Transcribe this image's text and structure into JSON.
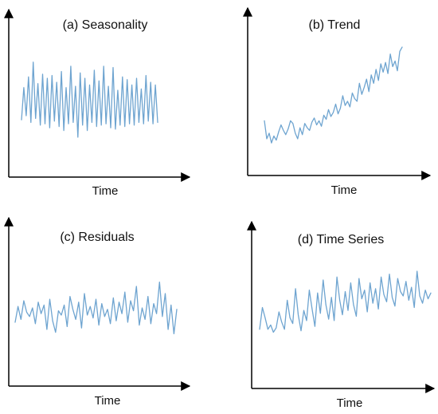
{
  "colors": {
    "line": "#6ea4d0",
    "axis": "#000000"
  },
  "chart_data": [
    {
      "type": "line",
      "title": "(a) Seasonality",
      "xlabel": "Time",
      "ylabel": "",
      "ylim": [
        0,
        10
      ],
      "series": [
        {
          "values": [
            3.8,
            6.2,
            4.1,
            7.0,
            3.6,
            8.1,
            3.9,
            6.5,
            3.4,
            7.2,
            3.5,
            6.9,
            3.2,
            7.1,
            3.7,
            6.6,
            3.3,
            7.4,
            3.0,
            6.2,
            3.5,
            7.8,
            3.6,
            6.3,
            2.5,
            7.3,
            3.4,
            6.9,
            3.0,
            6.4,
            3.6,
            7.5,
            3.3,
            6.7,
            3.4,
            7.8,
            3.5,
            6.3,
            3.2,
            7.7,
            3.1,
            6.0,
            3.4,
            7.0,
            3.3,
            6.8,
            3.5,
            6.4,
            3.4,
            6.9,
            3.6,
            6.1,
            3.5,
            7.1,
            3.7,
            6.6,
            3.5,
            6.4,
            3.6
          ]
        }
      ]
    },
    {
      "type": "line",
      "title": "(b) Trend",
      "xlabel": "Time",
      "ylabel": "",
      "ylim": [
        0,
        10
      ],
      "series": [
        {
          "values": [
            3.6,
            2.3,
            2.7,
            2.0,
            2.5,
            2.2,
            2.8,
            3.3,
            2.9,
            2.6,
            3.0,
            3.6,
            3.4,
            2.7,
            2.3,
            3.1,
            2.6,
            3.4,
            3.1,
            2.9,
            3.5,
            3.8,
            3.3,
            3.6,
            3.2,
            4.0,
            3.7,
            4.4,
            3.9,
            4.2,
            4.8,
            4.1,
            4.5,
            5.4,
            4.7,
            5.0,
            4.6,
            5.6,
            5.2,
            5.0,
            6.3,
            5.5,
            6.0,
            6.6,
            5.7,
            6.9,
            6.3,
            7.3,
            6.5,
            7.7,
            7.1,
            7.8,
            7.0,
            8.4,
            7.5,
            7.9,
            7.2,
            8.6,
            8.9
          ]
        }
      ]
    },
    {
      "type": "line",
      "title": "(c) Residuals",
      "xlabel": "Time",
      "ylabel": "",
      "ylim": [
        0,
        10
      ],
      "series": [
        {
          "values": [
            4.0,
            5.1,
            4.2,
            5.5,
            4.7,
            4.4,
            5.0,
            3.9,
            5.4,
            4.6,
            5.2,
            3.5,
            5.6,
            4.1,
            3.3,
            4.8,
            4.5,
            5.2,
            3.7,
            5.8,
            4.9,
            4.2,
            5.4,
            3.6,
            6.0,
            4.5,
            5.1,
            4.3,
            5.6,
            3.8,
            5.3,
            4.4,
            4.9,
            3.9,
            5.7,
            4.1,
            5.4,
            4.6,
            6.1,
            4.0,
            5.5,
            4.8,
            6.5,
            3.8,
            5.0,
            4.2,
            5.8,
            3.9,
            5.3,
            4.6,
            6.8,
            4.4,
            6.0,
            3.5,
            5.2,
            3.2,
            4.9
          ]
        }
      ]
    },
    {
      "type": "line",
      "title": "(d) Time Series",
      "xlabel": "Time",
      "ylabel": "",
      "ylim": [
        0,
        10
      ],
      "series": [
        {
          "values": [
            3.8,
            5.3,
            4.6,
            3.8,
            4.1,
            3.6,
            3.9,
            5.0,
            4.3,
            3.8,
            5.8,
            4.6,
            4.2,
            6.6,
            4.8,
            3.7,
            5.1,
            4.4,
            6.5,
            5.2,
            4.0,
            6.3,
            4.9,
            7.2,
            5.5,
            4.5,
            6.0,
            4.4,
            7.4,
            5.8,
            4.8,
            6.4,
            5.1,
            7.0,
            5.5,
            4.7,
            7.3,
            5.9,
            6.5,
            5.0,
            7.0,
            5.6,
            6.6,
            5.2,
            7.4,
            6.2,
            5.7,
            7.6,
            6.0,
            5.4,
            7.3,
            6.4,
            6.1,
            7.1,
            5.8,
            6.7,
            5.3,
            7.8,
            6.1,
            5.6,
            6.5,
            5.9,
            6.3
          ]
        }
      ]
    }
  ]
}
